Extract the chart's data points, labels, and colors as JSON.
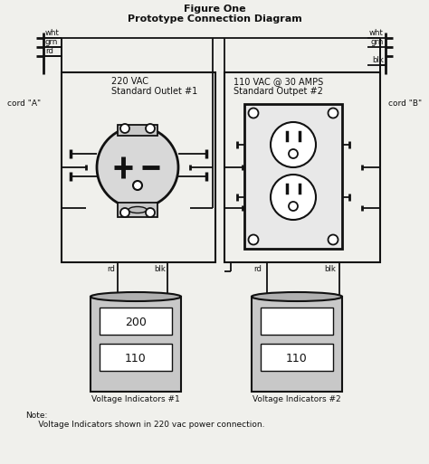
{
  "title_line1": "Figure One",
  "title_line2": "Prototype Connection Diagram",
  "bg_color": "#f0f0ec",
  "line_color": "#111111",
  "outlet1_l1": "220 VAC",
  "outlet1_l2": "Standard Outlet #1",
  "outlet2_l1": "110 VAC @ 30 AMPS",
  "outlet2_l2": "Standard Outpet #2",
  "cord_a": "cord \"A\"",
  "cord_b": "cord \"B\"",
  "wleft": [
    "wht",
    "grn",
    "rd"
  ],
  "wright": [
    "wht",
    "grn",
    "blk"
  ],
  "rd_left": "rd",
  "blk_left": "blk",
  "rd_right": "rd",
  "blk_right": "blk",
  "vi1_label": "Voltage Indicators #1",
  "vi2_label": "Voltage Indicators #2",
  "vi1_top": "200",
  "vi1_bot": "110",
  "vi2_top": "",
  "vi2_bot": "110",
  "note": "Note:\n     Voltage Indicators shown in 220 vac power connection."
}
